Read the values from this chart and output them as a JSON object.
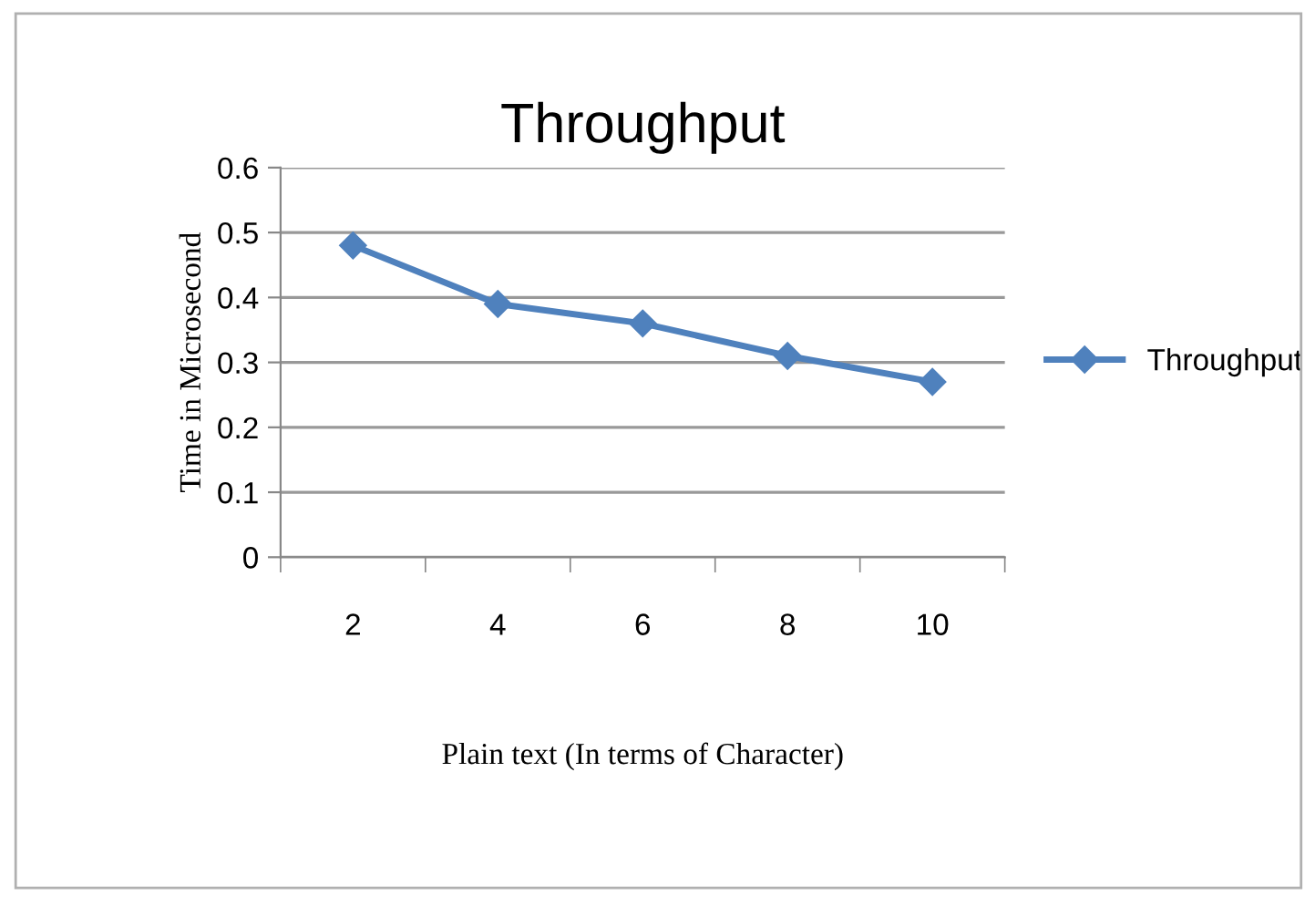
{
  "chart_data": {
    "type": "line",
    "title": "Throughput",
    "xlabel": "Plain text (In terms of Character)",
    "ylabel": "Time in Microsecond",
    "categories": [
      "2",
      "4",
      "6",
      "8",
      "10"
    ],
    "series": [
      {
        "name": "Throughput",
        "color": "#4f81bd",
        "values": [
          0.48,
          0.39,
          0.36,
          0.31,
          0.27
        ]
      }
    ],
    "ylim": [
      0,
      0.6
    ],
    "yticks": [
      0,
      0.1,
      0.2,
      0.3,
      0.4,
      0.5,
      0.6
    ],
    "grid": "y",
    "legend": "right",
    "marker": "diamond",
    "line_style": "solid"
  }
}
